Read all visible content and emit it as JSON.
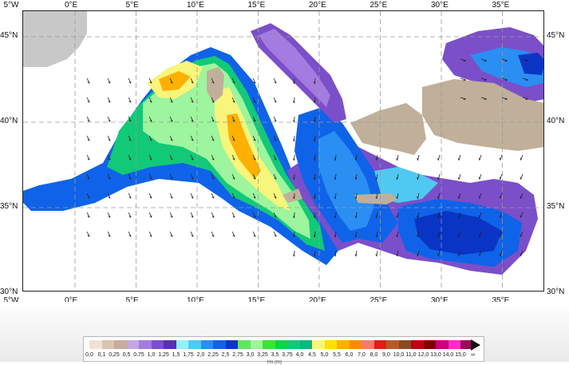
{
  "axes": {
    "longitude_ticks": [
      "5°W",
      "0°E",
      "5°E",
      "10°E",
      "15°E",
      "20°E",
      "25°E",
      "30°E",
      "35°E"
    ],
    "latitude_ticks_left": [
      "45°N",
      "40°N",
      "35°N",
      "30°N"
    ],
    "latitude_ticks_right": [
      "45°N",
      "40°N",
      "35°N",
      "30°N"
    ]
  },
  "map": {
    "grid": true,
    "extent_lon": [
      -5.8,
      36.5
    ],
    "extent_lat": [
      29.9,
      46.3
    ],
    "land_color": "#c0b09a",
    "outside_domain_color": "#c8c8c8",
    "sea_color_west": "#2a6be0",
    "sea_color_east": "#6a4fc0",
    "max_field_color": "#ff9a00",
    "arrow_color": "#222222"
  },
  "legend": {
    "labels": [
      "0,0",
      "0,1",
      "0,25",
      "0,5",
      "0,75",
      "1,0",
      "1,25",
      "1,5",
      "1,75",
      "2,0",
      "2,25",
      "2,5",
      "2,75",
      "3,0",
      "3,25",
      "3,5",
      "3,75",
      "4,0",
      "4,5",
      "5,0",
      "5,5",
      "6,0",
      "7,0",
      "8,0",
      "9,0",
      "10,0",
      "11,0",
      "12,0",
      "13,0",
      "14,0",
      "15,0",
      "∞"
    ],
    "colors": [
      "#f2e1d3",
      "#dac4ae",
      "#c7ad9c",
      "#c4a6e6",
      "#a47be0",
      "#7b4fc9",
      "#5a2fb0",
      "#8ef4f4",
      "#4fc9f2",
      "#2a8ef2",
      "#0f63e8",
      "#0a35c4",
      "#5fe65f",
      "#9df59d",
      "#35e635",
      "#10d44a",
      "#12c977",
      "#06b87e",
      "#f7f57a",
      "#ffe000",
      "#ffb000",
      "#ff8a00",
      "#f77a6a",
      "#e61a1a",
      "#b85a28",
      "#8a4a20",
      "#c00014",
      "#7e0000",
      "#c6007e",
      "#ff2ac8",
      "#9a0a5a"
    ],
    "unit": "Hs (m)"
  }
}
